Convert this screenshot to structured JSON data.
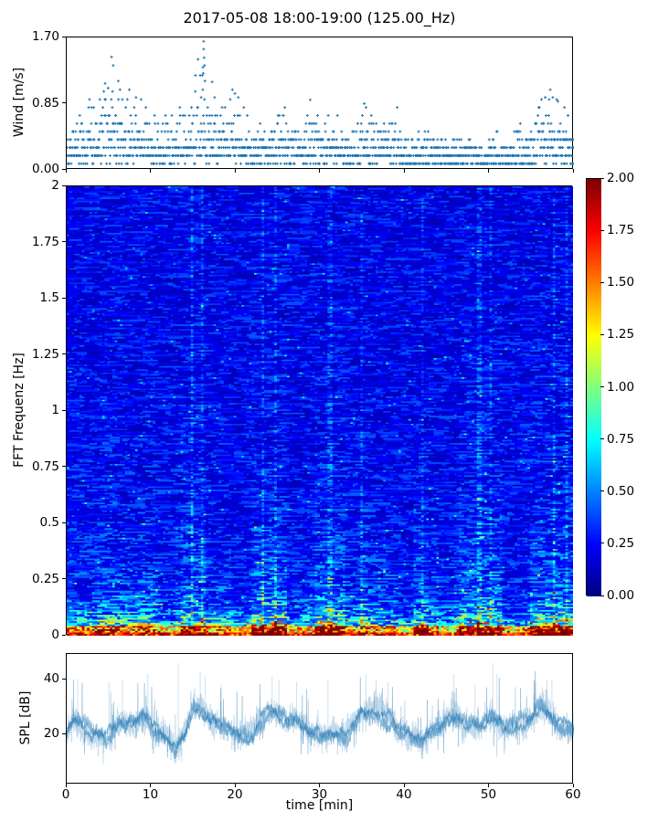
{
  "title": "2017-05-08 18:00-19:00 (125.00_Hz)",
  "colors": {
    "series_blue": "#1f77b4",
    "axis": "#000000",
    "background": "#ffffff"
  },
  "chart_data": [
    {
      "id": "wind",
      "type": "scatter",
      "panel": "top",
      "ylabel": "Wind [m/s]",
      "ylim": [
        0,
        1.7
      ],
      "xlim": [
        0,
        60
      ],
      "yticks": [
        {
          "label": "1.70",
          "value": 1.7
        },
        {
          "label": "0.85",
          "value": 0.85
        },
        {
          "label": "0.00",
          "value": 0.0
        }
      ],
      "marker": "+",
      "color": "#1f77b4",
      "seed": 42,
      "samples": 1700,
      "level_offset": 0.08,
      "quantization_step": 0.103,
      "envelope_max_per_min": [
        0.78,
        0.82,
        0.85,
        0.9,
        1.05,
        1.45,
        1.15,
        1.0,
        1.05,
        0.92,
        0.82,
        0.75,
        0.85,
        0.85,
        0.95,
        1.25,
        1.7,
        1.1,
        0.95,
        1.0,
        1.05,
        0.85,
        0.62,
        0.75,
        0.68,
        0.85,
        0.85,
        0.72,
        0.65,
        0.9,
        0.85,
        0.8,
        0.75,
        0.7,
        0.62,
        0.85,
        0.8,
        0.72,
        0.9,
        0.85,
        0.62,
        0.52,
        0.55,
        0.6,
        0.52,
        0.45,
        0.5,
        0.6,
        0.45,
        0.42,
        0.5,
        0.55,
        0.5,
        0.6,
        0.65,
        0.8,
        0.9,
        1.0,
        1.05,
        0.95,
        0.9
      ],
      "extra_points": [
        [
          4.9,
          1.05
        ],
        [
          5.3,
          1.45
        ],
        [
          5.5,
          1.34
        ],
        [
          6.1,
          1.14
        ],
        [
          6.3,
          1.03
        ],
        [
          7.4,
          1.03
        ],
        [
          8.2,
          0.93
        ],
        [
          15.9,
          0.93
        ],
        [
          16.2,
          1.65
        ],
        [
          16.2,
          1.55
        ],
        [
          16.25,
          1.44
        ],
        [
          16.3,
          1.34
        ],
        [
          16.15,
          1.24
        ],
        [
          16.35,
          1.14
        ],
        [
          16.1,
          1.03
        ],
        [
          17.2,
          1.13
        ],
        [
          17.5,
          0.93
        ],
        [
          19.6,
          1.03
        ],
        [
          19.9,
          0.98
        ],
        [
          20.3,
          0.93
        ],
        [
          28.8,
          0.9
        ],
        [
          35.2,
          0.85
        ],
        [
          56.6,
          0.93
        ],
        [
          57.2,
          1.03
        ],
        [
          57.5,
          0.93
        ],
        [
          58.1,
          0.88
        ]
      ]
    },
    {
      "id": "spectrogram",
      "type": "heatmap",
      "panel": "middle",
      "ylabel": "FFT Frequenz [Hz]",
      "ylim": [
        0,
        2
      ],
      "xlim": [
        0,
        60
      ],
      "clim": [
        0,
        2
      ],
      "colormap": "jet",
      "yticks": [
        {
          "label": "2",
          "value": 2
        },
        {
          "label": "1.75",
          "value": 1.75
        },
        {
          "label": "1.5",
          "value": 1.5
        },
        {
          "label": "1.25",
          "value": 1.25
        },
        {
          "label": "1",
          "value": 1
        },
        {
          "label": "0.75",
          "value": 0.75
        },
        {
          "label": "0.5",
          "value": 0.5
        },
        {
          "label": "0.25",
          "value": 0.25
        },
        {
          "label": "0",
          "value": 0
        }
      ],
      "colorbar_ticks": [
        {
          "label": "2.00",
          "value": 2.0
        },
        {
          "label": "1.75",
          "value": 1.75
        },
        {
          "label": "1.50",
          "value": 1.5
        },
        {
          "label": "1.25",
          "value": 1.25
        },
        {
          "label": "1.00",
          "value": 1.0
        },
        {
          "label": "0.75",
          "value": 0.75
        },
        {
          "label": "0.50",
          "value": 0.5
        },
        {
          "label": "0.25",
          "value": 0.25
        },
        {
          "label": "0.00",
          "value": 0.0
        }
      ],
      "grid": {
        "cols": 200,
        "rows": 280
      },
      "seed": 7,
      "freq_profile": {
        "bg": 0.23,
        "a1": 0.95,
        "tau1": 0.05,
        "a2": 0.16,
        "tau2": 0.35
      },
      "events": [
        [
          3.5,
          6.5,
          1.22
        ],
        [
          8.5,
          10.5,
          1.18
        ],
        [
          13.5,
          16.5,
          1.5
        ],
        [
          22,
          26,
          1.5
        ],
        [
          29.5,
          33,
          1.42
        ],
        [
          34.8,
          35.6,
          1.25
        ],
        [
          41,
          43,
          1.3
        ],
        [
          46.5,
          51.5,
          1.48
        ],
        [
          55,
          60,
          1.52
        ],
        [
          11,
          13,
          0.82
        ],
        [
          19.5,
          21.5,
          0.85
        ],
        [
          26.5,
          28.5,
          0.9
        ],
        [
          39,
          41,
          0.8
        ],
        [
          44,
          46,
          0.85
        ],
        [
          52,
          54,
          0.85
        ]
      ],
      "streaks": [
        [
          14.9,
          1.5
        ],
        [
          16.1,
          1.35
        ],
        [
          23.3,
          1.45
        ],
        [
          24.8,
          1.4
        ],
        [
          31.2,
          1.4
        ],
        [
          35.0,
          1.3
        ],
        [
          42.2,
          1.25
        ],
        [
          48.9,
          1.45
        ],
        [
          50.3,
          1.35
        ],
        [
          57.8,
          1.45
        ],
        [
          59.3,
          1.35
        ]
      ]
    },
    {
      "id": "spl",
      "type": "line",
      "panel": "bottom",
      "ylabel": "SPL [dB]",
      "xlabel": "time [min]",
      "ylim": [
        2,
        49.3
      ],
      "xlim": [
        0,
        60
      ],
      "yticks": [
        {
          "label": "40",
          "value": 40
        },
        {
          "label": "20",
          "value": 20
        }
      ],
      "xticks": [
        {
          "label": "0",
          "value": 0
        },
        {
          "label": "10",
          "value": 10
        },
        {
          "label": "20",
          "value": 20
        },
        {
          "label": "30",
          "value": 30
        },
        {
          "label": "40",
          "value": 40
        },
        {
          "label": "50",
          "value": 50
        },
        {
          "label": "60",
          "value": 60
        }
      ],
      "color": "#1f77b4",
      "seed": 11,
      "mean_per_min": [
        20,
        25,
        23,
        21,
        20,
        19,
        23,
        25,
        24,
        26,
        23,
        21,
        19,
        16,
        20,
        30,
        29,
        25,
        22,
        21,
        20,
        20,
        21,
        26,
        28,
        27,
        26,
        27,
        24,
        21,
        20,
        20,
        21,
        20,
        24,
        28,
        27,
        28,
        26,
        23,
        21,
        19,
        17,
        20,
        22,
        26,
        25,
        23,
        24,
        24,
        26,
        23,
        22,
        23,
        23,
        26,
        28,
        27,
        24,
        23,
        22
      ],
      "spikes": [
        [
          1.3,
          40
        ],
        [
          5.0,
          39
        ],
        [
          6.6,
          40
        ],
        [
          9.6,
          42
        ],
        [
          13.2,
          46
        ],
        [
          15.8,
          43
        ],
        [
          16.4,
          41
        ],
        [
          18.3,
          38
        ],
        [
          24.3,
          41
        ],
        [
          25.1,
          40
        ],
        [
          27.2,
          39
        ],
        [
          30.9,
          40
        ],
        [
          35.4,
          42
        ],
        [
          36.6,
          40
        ],
        [
          38.0,
          39
        ],
        [
          45.8,
          42
        ],
        [
          48.3,
          38
        ],
        [
          50.4,
          46
        ],
        [
          50.9,
          42
        ],
        [
          55.5,
          39
        ],
        [
          56.8,
          40
        ],
        [
          57.4,
          40
        ],
        [
          13.6,
          10
        ],
        [
          30.2,
          13
        ],
        [
          42.1,
          11
        ],
        [
          51.8,
          14
        ]
      ]
    }
  ]
}
